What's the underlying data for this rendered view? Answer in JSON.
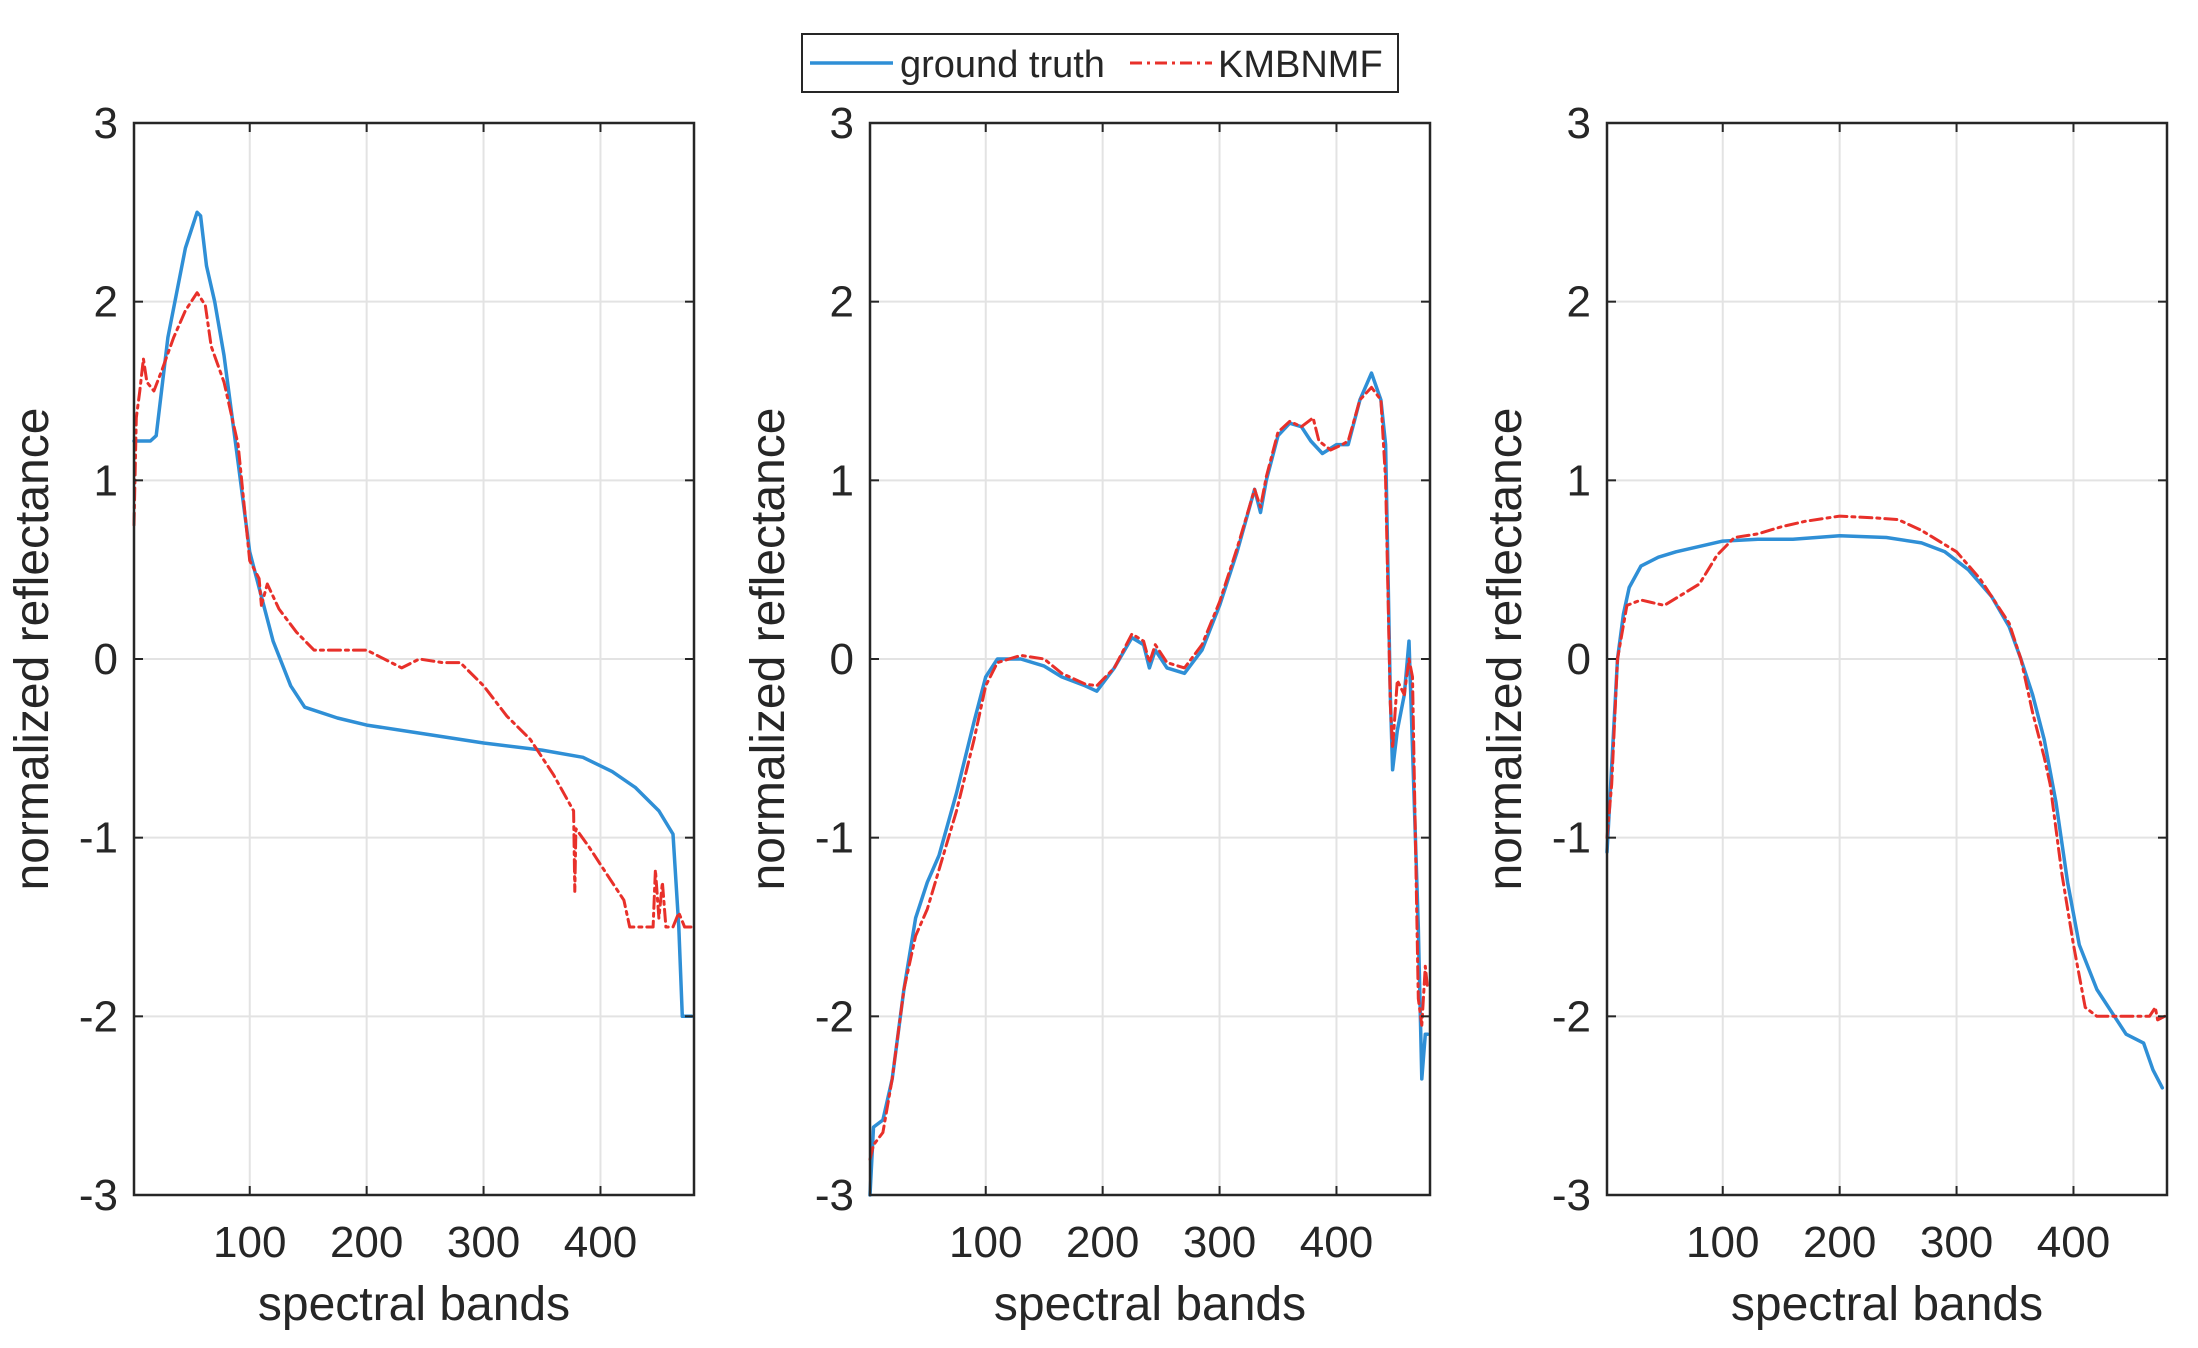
{
  "colors": {
    "ground_truth": "#2f8fd6",
    "kmbnmf": "#e8302a"
  },
  "legend": {
    "entries": [
      {
        "label": "ground truth",
        "style": "solid",
        "color": "#2f8fd6"
      },
      {
        "label": "KMBNMF",
        "style": "dashdot",
        "color": "#e8302a"
      }
    ],
    "position": "top-center"
  },
  "chart_data": [
    {
      "type": "line",
      "title": "",
      "xlabel": "spectral bands",
      "ylabel": "normalized reflectance",
      "xlim": [
        1,
        480
      ],
      "ylim": [
        -3,
        3
      ],
      "xticks": [
        100,
        200,
        300,
        400
      ],
      "yticks": [
        -3,
        -2,
        -1,
        0,
        1,
        2,
        3
      ],
      "grid": true,
      "series": [
        {
          "name": "ground truth",
          "points": [
            [
              1,
              1.22
            ],
            [
              15,
              1.22
            ],
            [
              20,
              1.25
            ],
            [
              30,
              1.8
            ],
            [
              45,
              2.3
            ],
            [
              55,
              2.5
            ],
            [
              58,
              2.48
            ],
            [
              63,
              2.2
            ],
            [
              70,
              2.0
            ],
            [
              78,
              1.7
            ],
            [
              90,
              1.1
            ],
            [
              100,
              0.6
            ],
            [
              110,
              0.35
            ],
            [
              120,
              0.1
            ],
            [
              135,
              -0.15
            ],
            [
              147,
              -0.27
            ],
            [
              175,
              -0.33
            ],
            [
              200,
              -0.37
            ],
            [
              250,
              -0.42
            ],
            [
              300,
              -0.47
            ],
            [
              350,
              -0.51
            ],
            [
              385,
              -0.55
            ],
            [
              410,
              -0.63
            ],
            [
              430,
              -0.72
            ],
            [
              450,
              -0.85
            ],
            [
              462,
              -0.98
            ],
            [
              467,
              -1.5
            ],
            [
              470,
              -2.0
            ],
            [
              478,
              -2.0
            ]
          ]
        },
        {
          "name": "KMBNMF",
          "points": [
            [
              1,
              0.75
            ],
            [
              3,
              1.35
            ],
            [
              6,
              1.5
            ],
            [
              9,
              1.68
            ],
            [
              12,
              1.55
            ],
            [
              18,
              1.5
            ],
            [
              25,
              1.62
            ],
            [
              35,
              1.8
            ],
            [
              45,
              1.95
            ],
            [
              55,
              2.05
            ],
            [
              62,
              1.98
            ],
            [
              67,
              1.75
            ],
            [
              78,
              1.55
            ],
            [
              90,
              1.2
            ],
            [
              100,
              0.55
            ],
            [
              108,
              0.45
            ],
            [
              110,
              0.3
            ],
            [
              115,
              0.42
            ],
            [
              125,
              0.28
            ],
            [
              140,
              0.15
            ],
            [
              155,
              0.05
            ],
            [
              200,
              0.05
            ],
            [
              230,
              -0.05
            ],
            [
              245,
              0.0
            ],
            [
              265,
              -0.02
            ],
            [
              280,
              -0.02
            ],
            [
              300,
              -0.15
            ],
            [
              320,
              -0.32
            ],
            [
              340,
              -0.45
            ],
            [
              360,
              -0.65
            ],
            [
              377,
              -0.85
            ],
            [
              378,
              -1.3
            ],
            [
              379,
              -0.95
            ],
            [
              390,
              -1.05
            ],
            [
              405,
              -1.2
            ],
            [
              420,
              -1.35
            ],
            [
              425,
              -1.5
            ],
            [
              445,
              -1.5
            ],
            [
              447,
              -1.18
            ],
            [
              450,
              -1.45
            ],
            [
              453,
              -1.25
            ],
            [
              456,
              -1.5
            ],
            [
              462,
              -1.5
            ],
            [
              467,
              -1.42
            ],
            [
              472,
              -1.5
            ],
            [
              478,
              -1.5
            ]
          ]
        }
      ]
    },
    {
      "type": "line",
      "title": "",
      "xlabel": "spectral bands",
      "ylabel": "normalized reflectance",
      "xlim": [
        1,
        480
      ],
      "ylim": [
        -3,
        3
      ],
      "xticks": [
        100,
        200,
        300,
        400
      ],
      "yticks": [
        -3,
        -2,
        -1,
        0,
        1,
        2,
        3
      ],
      "grid": true,
      "series": [
        {
          "name": "ground truth",
          "points": [
            [
              1,
              -3.0
            ],
            [
              4,
              -2.62
            ],
            [
              12,
              -2.58
            ],
            [
              20,
              -2.35
            ],
            [
              30,
              -1.85
            ],
            [
              40,
              -1.45
            ],
            [
              50,
              -1.25
            ],
            [
              60,
              -1.1
            ],
            [
              75,
              -0.75
            ],
            [
              90,
              -0.35
            ],
            [
              100,
              -0.1
            ],
            [
              110,
              0.0
            ],
            [
              130,
              0.0
            ],
            [
              150,
              -0.04
            ],
            [
              165,
              -0.1
            ],
            [
              185,
              -0.15
            ],
            [
              195,
              -0.18
            ],
            [
              210,
              -0.05
            ],
            [
              225,
              0.12
            ],
            [
              235,
              0.08
            ],
            [
              240,
              -0.05
            ],
            [
              245,
              0.05
            ],
            [
              255,
              -0.05
            ],
            [
              270,
              -0.08
            ],
            [
              285,
              0.05
            ],
            [
              300,
              0.3
            ],
            [
              315,
              0.6
            ],
            [
              330,
              0.95
            ],
            [
              335,
              0.82
            ],
            [
              340,
              1.0
            ],
            [
              350,
              1.25
            ],
            [
              360,
              1.32
            ],
            [
              370,
              1.3
            ],
            [
              378,
              1.22
            ],
            [
              388,
              1.15
            ],
            [
              400,
              1.2
            ],
            [
              410,
              1.2
            ],
            [
              420,
              1.45
            ],
            [
              430,
              1.6
            ],
            [
              438,
              1.45
            ],
            [
              442,
              1.2
            ],
            [
              446,
              -0.2
            ],
            [
              448,
              -0.62
            ],
            [
              452,
              -0.4
            ],
            [
              458,
              -0.2
            ],
            [
              462,
              0.1
            ],
            [
              465,
              -0.5
            ],
            [
              470,
              -1.5
            ],
            [
              473,
              -2.35
            ],
            [
              476,
              -2.1
            ],
            [
              478,
              -2.1
            ]
          ]
        },
        {
          "name": "KMBNMF",
          "points": [
            [
              1,
              -2.8
            ],
            [
              4,
              -2.72
            ],
            [
              12,
              -2.65
            ],
            [
              20,
              -2.35
            ],
            [
              30,
              -1.85
            ],
            [
              40,
              -1.55
            ],
            [
              50,
              -1.4
            ],
            [
              60,
              -1.18
            ],
            [
              75,
              -0.85
            ],
            [
              90,
              -0.45
            ],
            [
              100,
              -0.15
            ],
            [
              110,
              -0.02
            ],
            [
              130,
              0.02
            ],
            [
              150,
              0.0
            ],
            [
              165,
              -0.08
            ],
            [
              185,
              -0.14
            ],
            [
              195,
              -0.15
            ],
            [
              210,
              -0.05
            ],
            [
              225,
              0.14
            ],
            [
              235,
              0.1
            ],
            [
              240,
              -0.02
            ],
            [
              245,
              0.08
            ],
            [
              255,
              -0.02
            ],
            [
              270,
              -0.05
            ],
            [
              285,
              0.08
            ],
            [
              300,
              0.32
            ],
            [
              315,
              0.62
            ],
            [
              330,
              0.95
            ],
            [
              335,
              0.85
            ],
            [
              340,
              1.02
            ],
            [
              350,
              1.27
            ],
            [
              360,
              1.33
            ],
            [
              370,
              1.3
            ],
            [
              380,
              1.35
            ],
            [
              385,
              1.22
            ],
            [
              395,
              1.17
            ],
            [
              405,
              1.2
            ],
            [
              410,
              1.22
            ],
            [
              420,
              1.45
            ],
            [
              430,
              1.52
            ],
            [
              438,
              1.45
            ],
            [
              442,
              1.0
            ],
            [
              446,
              -0.25
            ],
            [
              448,
              -0.5
            ],
            [
              452,
              -0.12
            ],
            [
              458,
              -0.2
            ],
            [
              462,
              0.0
            ],
            [
              465,
              -0.1
            ],
            [
              470,
              -1.9
            ],
            [
              473,
              -2.05
            ],
            [
              476,
              -1.72
            ],
            [
              478,
              -1.85
            ]
          ]
        }
      ]
    },
    {
      "type": "line",
      "title": "",
      "xlabel": "spectral bands",
      "ylabel": "normalized reflectance",
      "xlim": [
        1,
        480
      ],
      "ylim": [
        -3,
        3
      ],
      "xticks": [
        100,
        200,
        300,
        400
      ],
      "yticks": [
        -3,
        -2,
        -1,
        0,
        1,
        2,
        3
      ],
      "grid": true,
      "series": [
        {
          "name": "ground truth",
          "points": [
            [
              1,
              -1.08
            ],
            [
              5,
              -0.6
            ],
            [
              10,
              0.0
            ],
            [
              15,
              0.25
            ],
            [
              20,
              0.4
            ],
            [
              30,
              0.52
            ],
            [
              45,
              0.57
            ],
            [
              60,
              0.6
            ],
            [
              80,
              0.63
            ],
            [
              100,
              0.66
            ],
            [
              130,
              0.67
            ],
            [
              160,
              0.67
            ],
            [
              200,
              0.69
            ],
            [
              240,
              0.68
            ],
            [
              270,
              0.65
            ],
            [
              290,
              0.6
            ],
            [
              310,
              0.5
            ],
            [
              330,
              0.35
            ],
            [
              345,
              0.18
            ],
            [
              355,
              0.0
            ],
            [
              365,
              -0.2
            ],
            [
              375,
              -0.45
            ],
            [
              385,
              -0.8
            ],
            [
              395,
              -1.25
            ],
            [
              405,
              -1.6
            ],
            [
              420,
              -1.85
            ],
            [
              435,
              -2.0
            ],
            [
              445,
              -2.1
            ],
            [
              460,
              -2.15
            ],
            [
              468,
              -2.3
            ],
            [
              476,
              -2.4
            ]
          ]
        },
        {
          "name": "KMBNMF",
          "points": [
            [
              1,
              -1.0
            ],
            [
              5,
              -0.7
            ],
            [
              10,
              0.0
            ],
            [
              18,
              0.3
            ],
            [
              30,
              0.33
            ],
            [
              50,
              0.3
            ],
            [
              65,
              0.36
            ],
            [
              80,
              0.42
            ],
            [
              95,
              0.58
            ],
            [
              110,
              0.68
            ],
            [
              130,
              0.7
            ],
            [
              150,
              0.74
            ],
            [
              170,
              0.77
            ],
            [
              200,
              0.8
            ],
            [
              230,
              0.79
            ],
            [
              250,
              0.78
            ],
            [
              270,
              0.72
            ],
            [
              300,
              0.6
            ],
            [
              320,
              0.45
            ],
            [
              345,
              0.2
            ],
            [
              355,
              0.0
            ],
            [
              365,
              -0.3
            ],
            [
              375,
              -0.55
            ],
            [
              380,
              -0.7
            ],
            [
              390,
              -1.2
            ],
            [
              400,
              -1.6
            ],
            [
              410,
              -1.95
            ],
            [
              420,
              -2.0
            ],
            [
              445,
              -2.0
            ],
            [
              465,
              -2.0
            ],
            [
              470,
              -1.95
            ],
            [
              472,
              -2.02
            ],
            [
              478,
              -2.0
            ]
          ]
        }
      ]
    }
  ]
}
